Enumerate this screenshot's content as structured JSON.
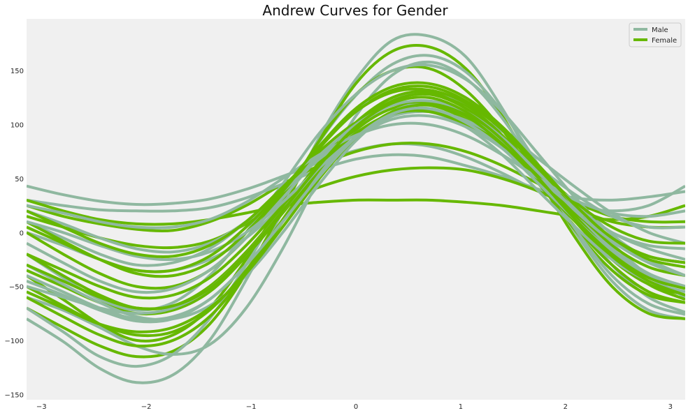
{
  "chart_data": {
    "type": "line",
    "title": "Andrew Curves for Gender",
    "xlabel": "",
    "ylabel": "",
    "xlim": [
      -3.1416,
      3.1416
    ],
    "ylim": [
      -155,
      198
    ],
    "x_ticks": [
      -3,
      -2,
      -1,
      0,
      1,
      2,
      3
    ],
    "y_ticks": [
      -150,
      -100,
      -50,
      0,
      50,
      100,
      150
    ],
    "grid": false,
    "background": "#f0f0f0",
    "legend": {
      "placement": "top-right"
    },
    "series": [
      {
        "name": "Male",
        "color": "#8fb8a0",
        "curves": [
          [
            -80,
            -101,
            -126,
            -139,
            -132,
            -100,
            -44,
            20,
            88,
            142,
            178,
            182,
            163,
            115,
            55,
            0,
            -45,
            -72,
            -80
          ],
          [
            -70,
            -92,
            -115,
            -124,
            -113,
            -80,
            -30,
            28,
            84,
            127,
            156,
            164,
            149,
            112,
            62,
            12,
            -30,
            -60,
            -74
          ],
          [
            43,
            35,
            29,
            26,
            27,
            31,
            40,
            52,
            65,
            76,
            82,
            80,
            70,
            55,
            38,
            25,
            20,
            25,
            43
          ],
          [
            30,
            25,
            21,
            20,
            20,
            23,
            32,
            45,
            58,
            68,
            72,
            70,
            62,
            52,
            40,
            32,
            30,
            33,
            38
          ],
          [
            -20,
            -42,
            -62,
            -72,
            -65,
            -40,
            0,
            45,
            92,
            128,
            150,
            155,
            142,
            112,
            72,
            32,
            -2,
            -25,
            -40
          ],
          [
            10,
            -5,
            -20,
            -30,
            -28,
            -15,
            10,
            40,
            72,
            98,
            115,
            120,
            112,
            94,
            68,
            42,
            18,
            0,
            -10
          ],
          [
            -40,
            -55,
            -70,
            -80,
            -78,
            -62,
            -30,
            10,
            55,
            95,
            122,
            130,
            120,
            96,
            62,
            25,
            -10,
            -40,
            -60
          ],
          [
            0,
            -12,
            -25,
            -35,
            -35,
            -25,
            -5,
            25,
            58,
            88,
            108,
            113,
            103,
            82,
            54,
            25,
            0,
            -15,
            -25
          ],
          [
            -60,
            -72,
            -88,
            -105,
            -113,
            -104,
            -70,
            -15,
            50,
            108,
            146,
            158,
            143,
            106,
            55,
            3,
            -40,
            -66,
            -76
          ],
          [
            20,
            8,
            -5,
            -15,
            -18,
            -10,
            10,
            38,
            68,
            92,
            108,
            112,
            104,
            85,
            60,
            35,
            15,
            5,
            5
          ],
          [
            -30,
            -48,
            -65,
            -78,
            -80,
            -68,
            -40,
            0,
            45,
            85,
            112,
            120,
            110,
            86,
            52,
            16,
            -15,
            -38,
            -50
          ],
          [
            -50,
            -60,
            -70,
            -75,
            -70,
            -52,
            -20,
            20,
            60,
            92,
            110,
            112,
            98,
            72,
            38,
            5,
            -25,
            -45,
            -55
          ],
          [
            10,
            0,
            -12,
            -22,
            -25,
            -18,
            0,
            28,
            60,
            88,
            105,
            108,
            98,
            78,
            50,
            22,
            0,
            -12,
            -15
          ],
          [
            -10,
            -28,
            -45,
            -55,
            -52,
            -35,
            -5,
            32,
            70,
            100,
            118,
            122,
            112,
            88,
            55,
            20,
            -8,
            -28,
            -40
          ],
          [
            25,
            18,
            10,
            5,
            5,
            12,
            28,
            50,
            72,
            90,
            100,
            100,
            90,
            72,
            50,
            30,
            18,
            15,
            20
          ],
          [
            -45,
            -58,
            -72,
            -82,
            -80,
            -62,
            -30,
            10,
            52,
            88,
            110,
            115,
            102,
            78,
            45,
            12,
            -18,
            -40,
            -52
          ]
        ]
      },
      {
        "name": "Female",
        "color": "#66b800",
        "curves": [
          [
            -70,
            -88,
            -105,
            -115,
            -110,
            -85,
            -38,
            22,
            85,
            138,
            168,
            172,
            152,
            108,
            50,
            -5,
            -50,
            -75,
            -80
          ],
          [
            -40,
            -62,
            -85,
            -100,
            -95,
            -70,
            -25,
            30,
            85,
            128,
            150,
            152,
            132,
            95,
            48,
            2,
            -35,
            -58,
            -65
          ],
          [
            25,
            15,
            8,
            3,
            2,
            10,
            25,
            45,
            62,
            75,
            82,
            82,
            75,
            62,
            45,
            28,
            15,
            10,
            10
          ],
          [
            15,
            5,
            -5,
            -12,
            -14,
            -8,
            8,
            28,
            42,
            52,
            58,
            60,
            58,
            50,
            38,
            22,
            10,
            5,
            5
          ],
          [
            30,
            20,
            12,
            8,
            8,
            12,
            18,
            25,
            28,
            30,
            30,
            30,
            28,
            25,
            20,
            15,
            12,
            15,
            25
          ],
          [
            -20,
            -40,
            -58,
            -70,
            -68,
            -50,
            -18,
            22,
            65,
            102,
            125,
            130,
            118,
            90,
            50,
            10,
            -25,
            -48,
            -58
          ],
          [
            -50,
            -68,
            -85,
            -95,
            -92,
            -72,
            -35,
            12,
            60,
            100,
            125,
            130,
            115,
            85,
            45,
            5,
            -30,
            -55,
            -65
          ],
          [
            0,
            -20,
            -38,
            -50,
            -50,
            -35,
            -5,
            35,
            78,
            112,
            132,
            135,
            122,
            95,
            58,
            20,
            -12,
            -32,
            -40
          ],
          [
            -35,
            -50,
            -65,
            -75,
            -72,
            -55,
            -22,
            18,
            60,
            95,
            115,
            118,
            105,
            80,
            45,
            10,
            -20,
            -40,
            -50
          ],
          [
            10,
            -8,
            -25,
            -38,
            -40,
            -28,
            0,
            38,
            80,
            115,
            135,
            138,
            125,
            98,
            62,
            25,
            -5,
            -22,
            -28
          ],
          [
            -60,
            -78,
            -95,
            -105,
            -100,
            -78,
            -38,
            10,
            58,
            98,
            122,
            128,
            115,
            88,
            52,
            15,
            -20,
            -48,
            -62
          ],
          [
            -20,
            -35,
            -50,
            -60,
            -58,
            -42,
            -12,
            25,
            62,
            92,
            110,
            112,
            100,
            78,
            48,
            18,
            -8,
            -25,
            -32
          ],
          [
            20,
            5,
            -10,
            -20,
            -22,
            -12,
            10,
            42,
            75,
            102,
            118,
            120,
            110,
            88,
            58,
            28,
            5,
            -8,
            -10
          ],
          [
            -55,
            -70,
            -85,
            -92,
            -88,
            -70,
            -38,
            5,
            50,
            88,
            112,
            118,
            108,
            82,
            48,
            12,
            -22,
            -45,
            -58
          ],
          [
            5,
            -10,
            -25,
            -35,
            -35,
            -22,
            5,
            40,
            80,
            112,
            130,
            132,
            120,
            95,
            60,
            25,
            -5,
            -22,
            -28
          ],
          [
            -30,
            -45,
            -60,
            -70,
            -68,
            -52,
            -20,
            20,
            62,
            98,
            120,
            125,
            112,
            86,
            50,
            12,
            -20,
            -42,
            -52
          ]
        ]
      }
    ]
  }
}
